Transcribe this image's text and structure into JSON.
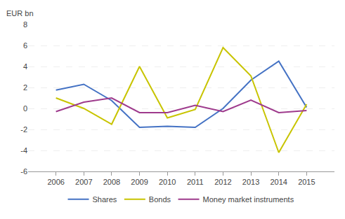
{
  "chart_data": {
    "type": "line",
    "ylabel": "EUR bn",
    "x": [
      2006,
      2007,
      2008,
      2009,
      2010,
      2011,
      2012,
      2013,
      2014,
      2015
    ],
    "series": [
      {
        "name": "Shares",
        "color": "#4472C4",
        "values": [
          1.75,
          2.3,
          0.75,
          -1.8,
          -1.7,
          -1.8,
          0.0,
          2.7,
          4.5,
          0.1
        ]
      },
      {
        "name": "Bonds",
        "color": "#C8C400",
        "values": [
          1.0,
          0.0,
          -1.5,
          4.0,
          -0.9,
          -0.1,
          5.8,
          3.1,
          -4.2,
          0.4
        ]
      },
      {
        "name": "Money market instruments",
        "color": "#9E3A8C",
        "values": [
          -0.3,
          0.6,
          1.0,
          -0.4,
          -0.4,
          0.3,
          -0.3,
          0.8,
          -0.4,
          -0.2
        ]
      }
    ],
    "xlim": [
      2005,
      2016
    ],
    "xticks": [
      2006,
      2007,
      2008,
      2009,
      2010,
      2011,
      2012,
      2013,
      2014,
      2015
    ],
    "ylim": [
      -6,
      8
    ],
    "yticks": [
      -6,
      -4,
      -2,
      0,
      2,
      4,
      6,
      8
    ],
    "grid": true,
    "legend": "bottom"
  }
}
